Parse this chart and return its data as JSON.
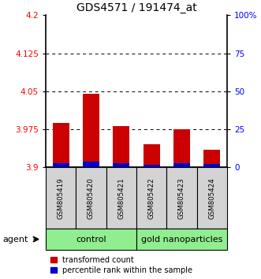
{
  "title": "GDS4571 / 191474_at",
  "samples": [
    "GSM805419",
    "GSM805420",
    "GSM805421",
    "GSM805422",
    "GSM805423",
    "GSM805424"
  ],
  "red_values": [
    3.988,
    4.045,
    3.982,
    3.945,
    3.976,
    3.935
  ],
  "blue_values": [
    3.908,
    3.912,
    3.908,
    3.906,
    3.909,
    3.907
  ],
  "ymin": 3.9,
  "ymax": 4.2,
  "y_ticks": [
    3.9,
    3.975,
    4.05,
    4.125,
    4.2
  ],
  "y_ticks_right": [
    0,
    25,
    50,
    75,
    100
  ],
  "y_ticks_right_labels": [
    "0",
    "25",
    "50",
    "75",
    "100%"
  ],
  "dotted_lines": [
    3.975,
    4.05,
    4.125
  ],
  "groups": [
    {
      "label": "control",
      "indices": [
        0,
        1,
        2
      ],
      "color": "#90ee90"
    },
    {
      "label": "gold nanoparticles",
      "indices": [
        3,
        4,
        5
      ],
      "color": "#90ee90"
    }
  ],
  "agent_label": "agent",
  "bar_width": 0.55,
  "red_color": "#cc0000",
  "blue_color": "#0000cc",
  "sample_bg_color": "#d3d3d3",
  "legend_red": "transformed count",
  "legend_blue": "percentile rank within the sample"
}
